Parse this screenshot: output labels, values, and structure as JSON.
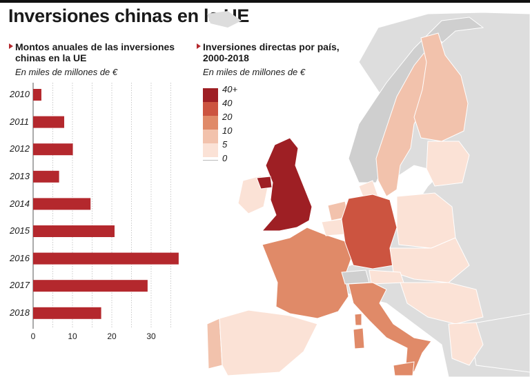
{
  "title": "Inversiones chinas en la UE",
  "bar_section": {
    "subtitle": "Montos anuales de las inversiones chinas en la UE",
    "subtitle_line1": "Montos anuales de las inversiones",
    "subtitle_line2": "chinas en la UE",
    "unit": "En miles de millones de €"
  },
  "map_section": {
    "subtitle_line1": "Inversiones directas por país,",
    "subtitle_line2": "2000-2018",
    "unit": "En miles de millones de €",
    "legend": [
      {
        "label": "40+",
        "color": "#9e1f24"
      },
      {
        "label": "40",
        "color": "#cc5440"
      },
      {
        "label": "20",
        "color": "#e08a68"
      },
      {
        "label": "10",
        "color": "#f2c2ac"
      },
      {
        "label": "5",
        "color": "#fbe2d6"
      },
      {
        "label": "0",
        "color": "#ffffff"
      }
    ],
    "countries": [
      {
        "name": "Reino Unido",
        "bin": "40+"
      },
      {
        "name": "Alemania",
        "bin": "40"
      },
      {
        "name": "Italia",
        "bin": "20"
      },
      {
        "name": "Francia",
        "bin": "20"
      },
      {
        "name": "Suecia",
        "bin": "10"
      },
      {
        "name": "Finlandia",
        "bin": "10"
      },
      {
        "name": "Países Bajos",
        "bin": "10"
      },
      {
        "name": "Portugal",
        "bin": "10"
      },
      {
        "name": "España",
        "bin": "5"
      },
      {
        "name": "Irlanda",
        "bin": "5"
      },
      {
        "name": "Polonia",
        "bin": "5"
      },
      {
        "name": "Grecia",
        "bin": "5"
      }
    ]
  },
  "chart_data": {
    "type": "bar",
    "orientation": "horizontal",
    "categories": [
      "2010",
      "2011",
      "2012",
      "2013",
      "2014",
      "2015",
      "2016",
      "2017",
      "2018"
    ],
    "values": [
      2.1,
      7.9,
      10.1,
      6.6,
      14.6,
      20.7,
      37.0,
      29.1,
      17.3
    ],
    "xlim": [
      0,
      37
    ],
    "xticks": [
      "0",
      "10",
      "20",
      "30"
    ],
    "grid": true,
    "bar_color": "#b4282d"
  },
  "colors": {
    "accent": "#b4282d",
    "land": "#dddddd"
  }
}
